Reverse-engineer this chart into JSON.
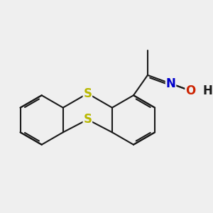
{
  "bg_color": "#efefef",
  "bond_color": "#1a1a1a",
  "S_color": "#b8b800",
  "N_color": "#0000cc",
  "O_color": "#cc2200",
  "line_width": 1.5,
  "font_size": 12,
  "xlim": [
    -2.5,
    3.2
  ],
  "ylim": [
    -1.8,
    1.8
  ]
}
